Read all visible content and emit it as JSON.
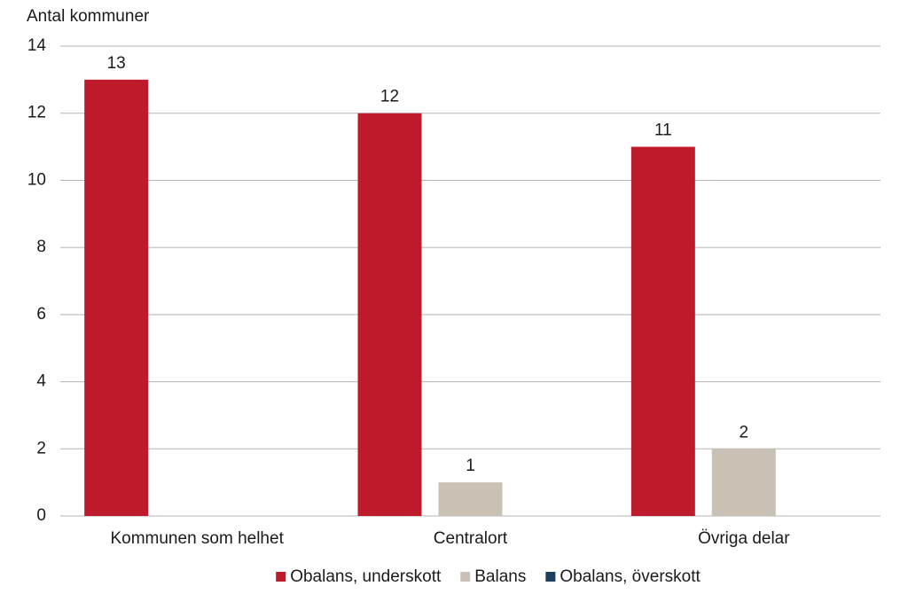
{
  "chart_data": {
    "type": "bar",
    "y_label": "Antal kommuner",
    "categories": [
      "Kommunen som helhet",
      "Centralort",
      "Övriga delar"
    ],
    "series": [
      {
        "name": "Obalans, underskott",
        "color": "#be1a2c",
        "values": [
          13,
          12,
          11
        ]
      },
      {
        "name": "Balans",
        "color": "#c9c2b4",
        "values": [
          null,
          1,
          2
        ]
      },
      {
        "name": "Obalans, överskott",
        "color": "#1d3e5e",
        "values": [
          null,
          null,
          null
        ]
      }
    ],
    "ylim": [
      0,
      14
    ],
    "yticks": [
      0,
      2,
      4,
      6,
      8,
      10,
      12,
      14
    ],
    "grid": true,
    "legend": "bottom"
  }
}
